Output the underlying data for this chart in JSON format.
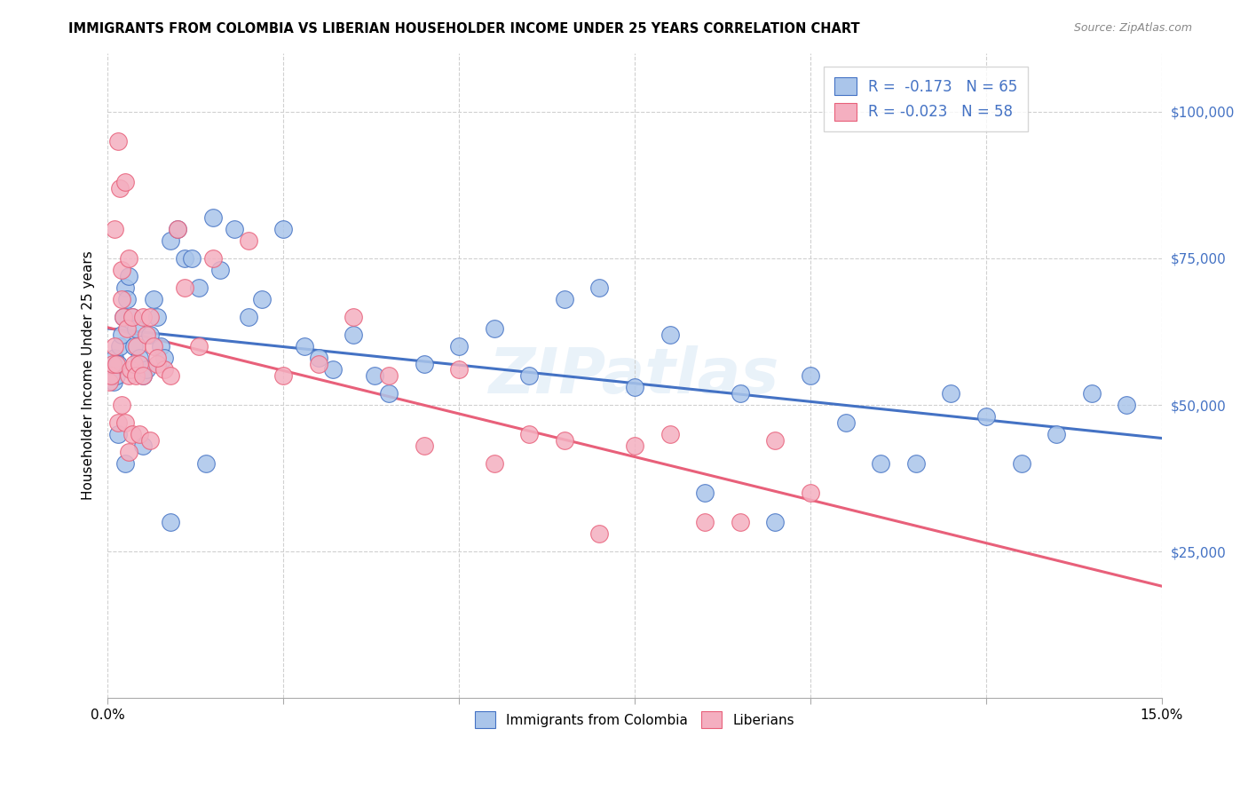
{
  "title": "IMMIGRANTS FROM COLOMBIA VS LIBERIAN HOUSEHOLDER INCOME UNDER 25 YEARS CORRELATION CHART",
  "source": "Source: ZipAtlas.com",
  "ylabel": "Householder Income Under 25 years",
  "xlim": [
    0.0,
    15.0
  ],
  "ylim": [
    0,
    110000
  ],
  "yticks": [
    25000,
    50000,
    75000,
    100000
  ],
  "ytick_labels": [
    "$25,000",
    "$50,000",
    "$75,000",
    "$100,000"
  ],
  "legend_r_colombia": "-0.173",
  "legend_n_colombia": "65",
  "legend_r_liberian": "-0.023",
  "legend_n_liberian": "58",
  "color_colombia": "#aac5ea",
  "color_liberian": "#f4afc0",
  "line_color_colombia": "#4472c4",
  "line_color_liberian": "#e8607a",
  "background_color": "#ffffff",
  "watermark": "ZIPatlas",
  "colombia_x": [
    0.05,
    0.08,
    0.1,
    0.12,
    0.15,
    0.18,
    0.2,
    0.22,
    0.25,
    0.28,
    0.3,
    0.35,
    0.38,
    0.4,
    0.45,
    0.5,
    0.55,
    0.6,
    0.65,
    0.7,
    0.75,
    0.8,
    0.9,
    1.0,
    1.1,
    1.2,
    1.3,
    1.5,
    1.6,
    1.8,
    2.0,
    2.2,
    2.5,
    2.8,
    3.0,
    3.2,
    3.5,
    3.8,
    4.0,
    4.5,
    5.0,
    5.5,
    6.0,
    6.5,
    7.0,
    7.5,
    8.0,
    8.5,
    9.0,
    9.5,
    10.0,
    10.5,
    11.0,
    11.5,
    12.0,
    12.5,
    13.0,
    13.5,
    14.0,
    14.5,
    0.15,
    0.25,
    0.5,
    0.9,
    1.4
  ],
  "colombia_y": [
    56000,
    54000,
    58000,
    55000,
    57000,
    60000,
    62000,
    65000,
    70000,
    68000,
    72000,
    65000,
    60000,
    63000,
    58000,
    55000,
    56000,
    62000,
    68000,
    65000,
    60000,
    58000,
    78000,
    80000,
    75000,
    75000,
    70000,
    82000,
    73000,
    80000,
    65000,
    68000,
    80000,
    60000,
    58000,
    56000,
    62000,
    55000,
    52000,
    57000,
    60000,
    63000,
    55000,
    68000,
    70000,
    53000,
    62000,
    35000,
    52000,
    30000,
    55000,
    47000,
    40000,
    40000,
    52000,
    48000,
    40000,
    45000,
    52000,
    50000,
    45000,
    40000,
    43000,
    30000,
    40000
  ],
  "liberian_x": [
    0.02,
    0.05,
    0.07,
    0.1,
    0.12,
    0.15,
    0.18,
    0.2,
    0.22,
    0.25,
    0.28,
    0.3,
    0.32,
    0.35,
    0.38,
    0.4,
    0.42,
    0.45,
    0.5,
    0.55,
    0.6,
    0.65,
    0.7,
    0.8,
    0.9,
    1.0,
    1.1,
    1.3,
    1.5,
    2.0,
    2.5,
    3.0,
    3.5,
    4.0,
    4.5,
    5.0,
    5.5,
    6.0,
    6.5,
    7.0,
    7.5,
    8.0,
    8.5,
    9.0,
    9.5,
    10.0,
    0.1,
    0.2,
    0.3,
    0.5,
    0.7,
    0.15,
    0.25,
    0.35,
    0.45,
    0.6,
    0.2,
    0.3
  ],
  "liberian_y": [
    54000,
    55000,
    57000,
    60000,
    57000,
    95000,
    87000,
    73000,
    65000,
    88000,
    63000,
    55000,
    56000,
    65000,
    57000,
    55000,
    60000,
    57000,
    65000,
    62000,
    65000,
    60000,
    57000,
    56000,
    55000,
    80000,
    70000,
    60000,
    75000,
    78000,
    55000,
    57000,
    65000,
    55000,
    43000,
    56000,
    40000,
    45000,
    44000,
    28000,
    43000,
    45000,
    30000,
    30000,
    44000,
    35000,
    80000,
    68000,
    75000,
    55000,
    58000,
    47000,
    47000,
    45000,
    45000,
    44000,
    50000,
    42000
  ]
}
